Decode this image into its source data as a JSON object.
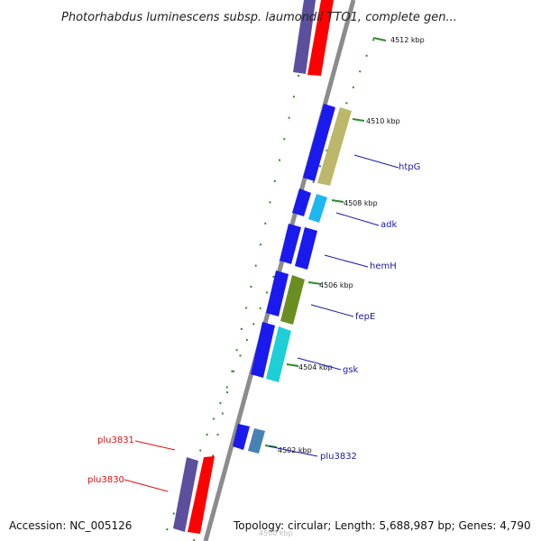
{
  "title": "Photorhabdus luminescens subsp. laumondii TTO1, complete gen...",
  "accession": "Accession: NC_005126",
  "topology": "Topology: circular; Length: 5,688,987 bp; Genes: 4,790",
  "colors": {
    "backbone": "#8c8c8c",
    "tick": "#2e8b2e",
    "dots": "#2e8b2e",
    "forward_label": "#1a1aa8",
    "reverse_label": "#dd1111",
    "cds": "#1a1aee",
    "gene_red": "#ff0000",
    "gene_purple": "#5b4f9e"
  },
  "ticks": [
    {
      "label": "4512 kbp",
      "faint": false
    },
    {
      "label": "4510 kbp",
      "faint": false
    },
    {
      "label": "4508 kbp",
      "faint": false
    },
    {
      "label": "4506 kbp",
      "faint": false
    },
    {
      "label": "4504 kbp",
      "faint": false
    },
    {
      "label": "4502 kbp",
      "faint": false
    },
    {
      "label": "4500 kbp",
      "faint": true
    }
  ],
  "gene_labels": [
    {
      "name": "htpG",
      "strand": "forward"
    },
    {
      "name": "adk",
      "strand": "forward"
    },
    {
      "name": "hemH",
      "strand": "forward"
    },
    {
      "name": "fepE",
      "strand": "forward"
    },
    {
      "name": "gsk",
      "strand": "forward"
    },
    {
      "name": "plu3832",
      "strand": "forward"
    },
    {
      "name": "plu3831",
      "strand": "reverse"
    },
    {
      "name": "plu3830",
      "strand": "reverse"
    }
  ]
}
